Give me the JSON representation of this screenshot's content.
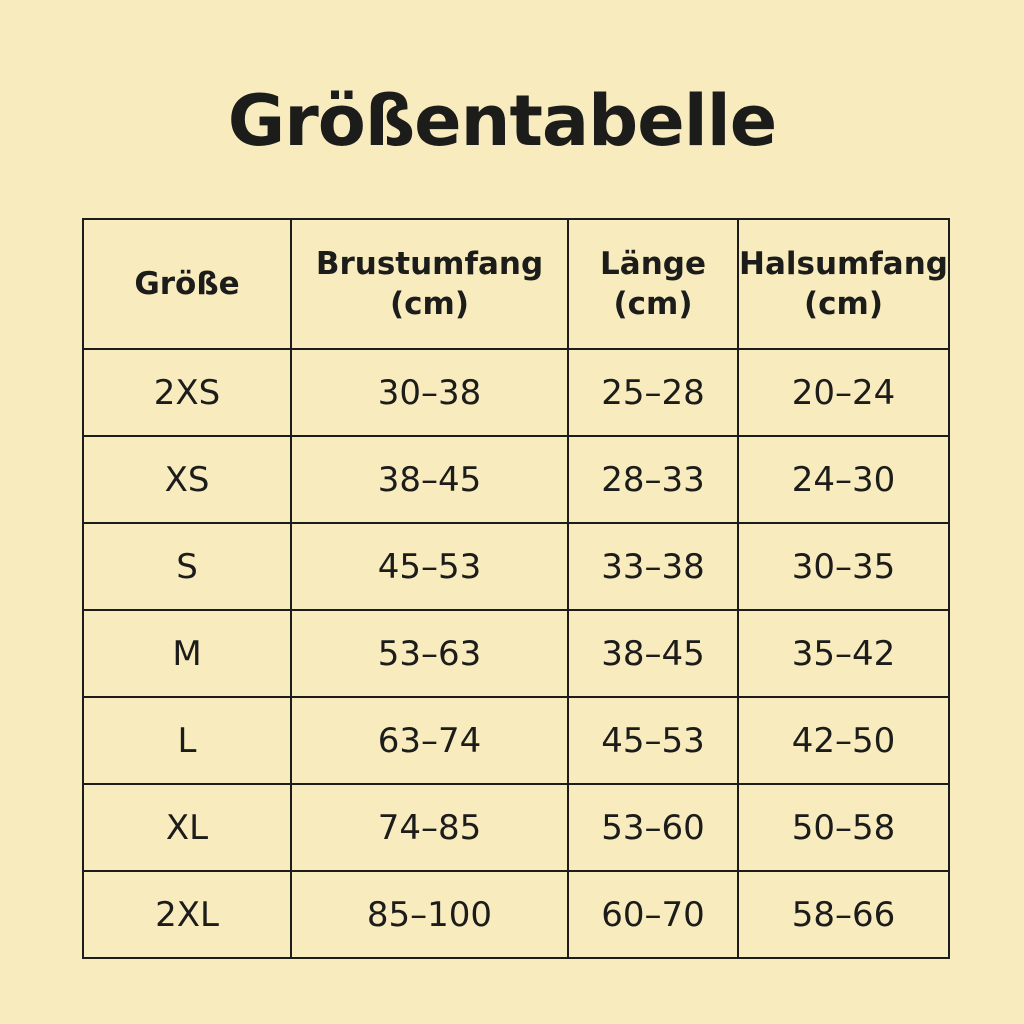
{
  "title": "Größentabelle",
  "headers": [
    {
      "line1": "Größe",
      "line2": ""
    },
    {
      "line1": "Brustumfang",
      "line2": "(cm)"
    },
    {
      "line1": "Länge",
      "line2": "(cm)"
    },
    {
      "line1": "Halsumfang",
      "line2": "(cm)"
    }
  ],
  "rows": [
    [
      "2XS",
      "30–38",
      "25–28",
      "20–24"
    ],
    [
      "XS",
      "38–45",
      "28–33",
      "24–30"
    ],
    [
      "S",
      "45–53",
      "33–38",
      "30–35"
    ],
    [
      "M",
      "53–63",
      "38–45",
      "35–42"
    ],
    [
      "L",
      "63–74",
      "45–53",
      "42–50"
    ],
    [
      "XL",
      "74–85",
      "53–60",
      "50–58"
    ],
    [
      "2XL",
      "85–100",
      "60–70",
      "58–66"
    ]
  ],
  "colors": {
    "background": "#f8ecbf",
    "text": "#1c1c1a"
  }
}
